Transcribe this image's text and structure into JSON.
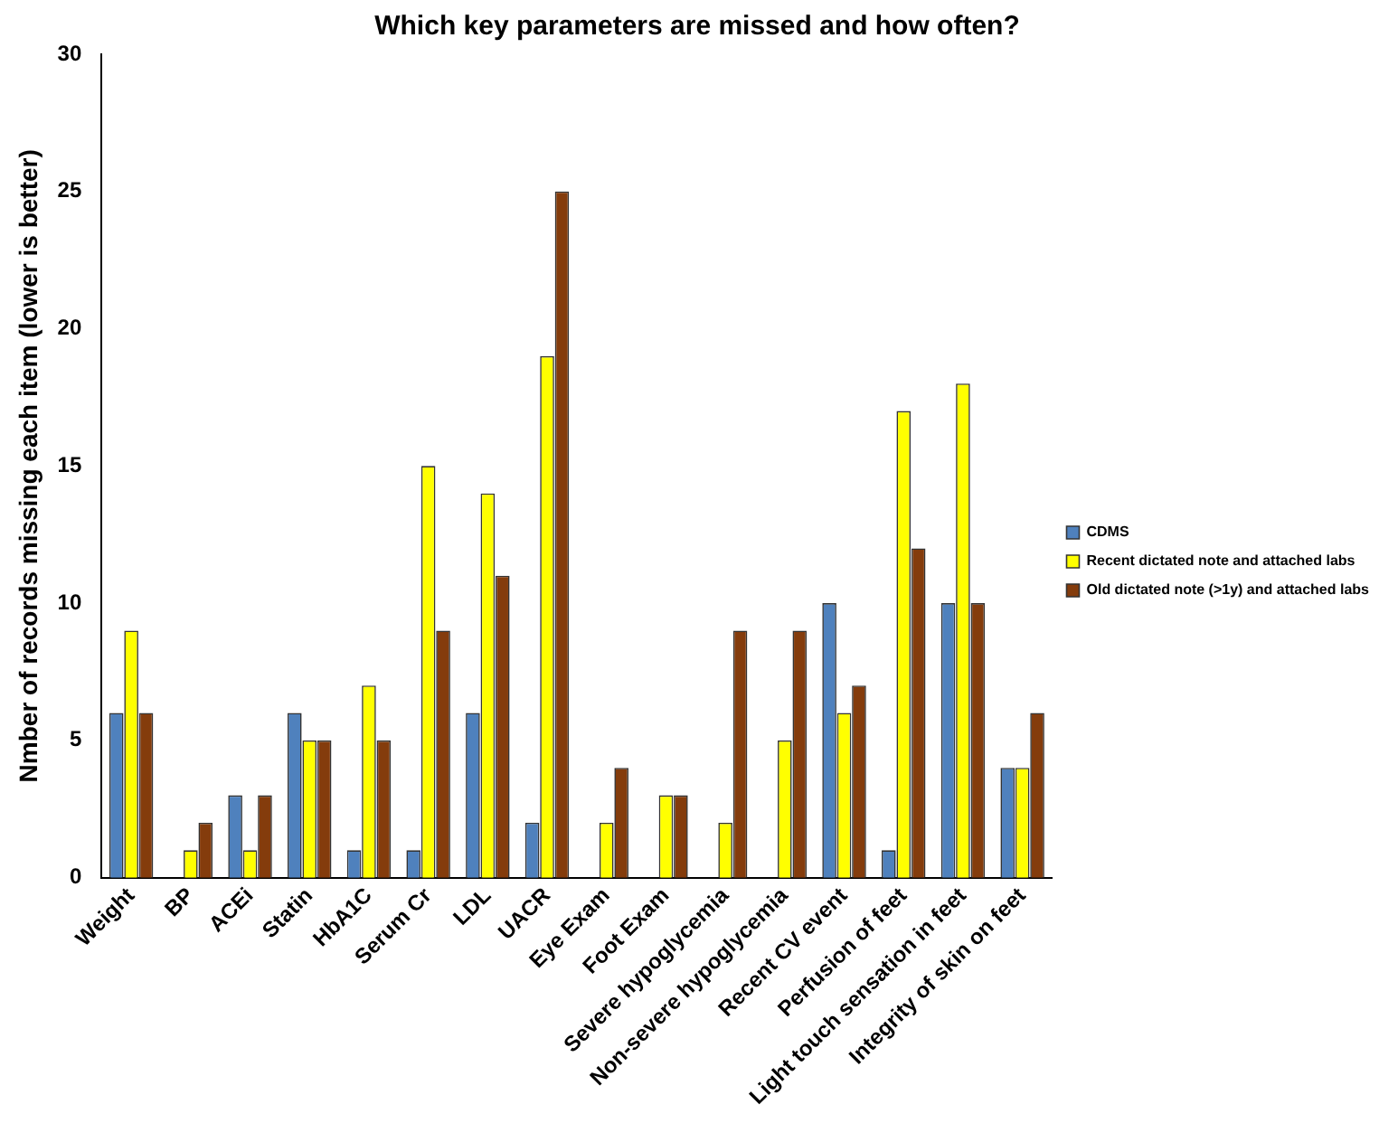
{
  "chart_data": {
    "type": "bar",
    "title": "Which key parameters are missed and how often?",
    "ylabel": "Nmber of records missing each item (lower is better)",
    "categories": [
      "Weight",
      "BP",
      "ACEi",
      "Statin",
      "HbA1C",
      "Serum Cr",
      "LDL",
      "UACR",
      "Eye Exam",
      "Foot Exam",
      "Severe hypoglycemia",
      "Non-severe hypoglycemia",
      "Recent CV event",
      "Perfusion of feet",
      "Light touch sensation in feet",
      "Integrity of skin on feet"
    ],
    "series": [
      {
        "name": "CDMS",
        "color": "#4f81bd",
        "values": [
          6,
          0,
          3,
          6,
          1,
          1,
          6,
          2,
          0,
          0,
          0,
          0,
          10,
          1,
          10,
          4
        ]
      },
      {
        "name": "Recent dictated note and attached labs",
        "color": "#ffff00",
        "values": [
          9,
          1,
          1,
          5,
          7,
          15,
          14,
          19,
          2,
          3,
          2,
          5,
          6,
          17,
          18,
          4
        ]
      },
      {
        "name": "Old dictated note (>1y) and attached labs",
        "color": "#843c0c",
        "values": [
          6,
          2,
          3,
          5,
          5,
          9,
          11,
          25,
          4,
          3,
          9,
          9,
          7,
          12,
          10,
          6
        ]
      }
    ],
    "ylim": [
      0,
      30
    ],
    "yticks": [
      0,
      5,
      10,
      15,
      20,
      25,
      30
    ],
    "grid": false,
    "legend": "right"
  }
}
